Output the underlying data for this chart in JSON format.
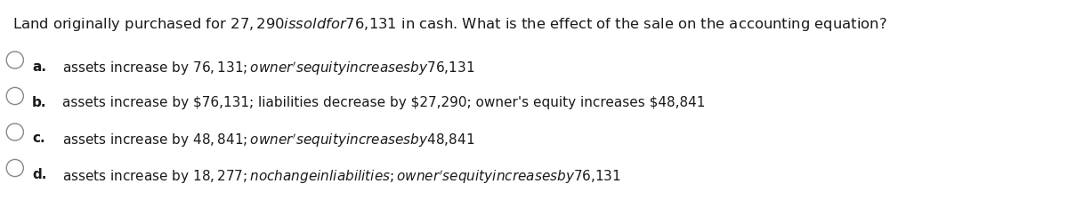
{
  "question": "Land originally purchased for $27,290 is sold for $76,131 in cash. What is the effect of the sale on the accounting equation?",
  "options": [
    {
      "label": "a.",
      "text": "assets increase by $76,131; owner's equity increases by $76,131"
    },
    {
      "label": "b.",
      "text": "assets increase by $76,131; liabilities decrease by $27,290; owner's equity increases $48,841"
    },
    {
      "label": "c.",
      "text": "assets increase by $48,841; owner's equity increases by $48,841"
    },
    {
      "label": "d.",
      "text": "assets increase by $18,277; no change in liabilities; owner's equity increases by $76,131"
    }
  ],
  "background_color": "#ffffff",
  "text_color": "#1a1a1a",
  "question_fontsize": 11.8,
  "option_fontsize": 11.0,
  "option_label_fontsize": 11.0
}
